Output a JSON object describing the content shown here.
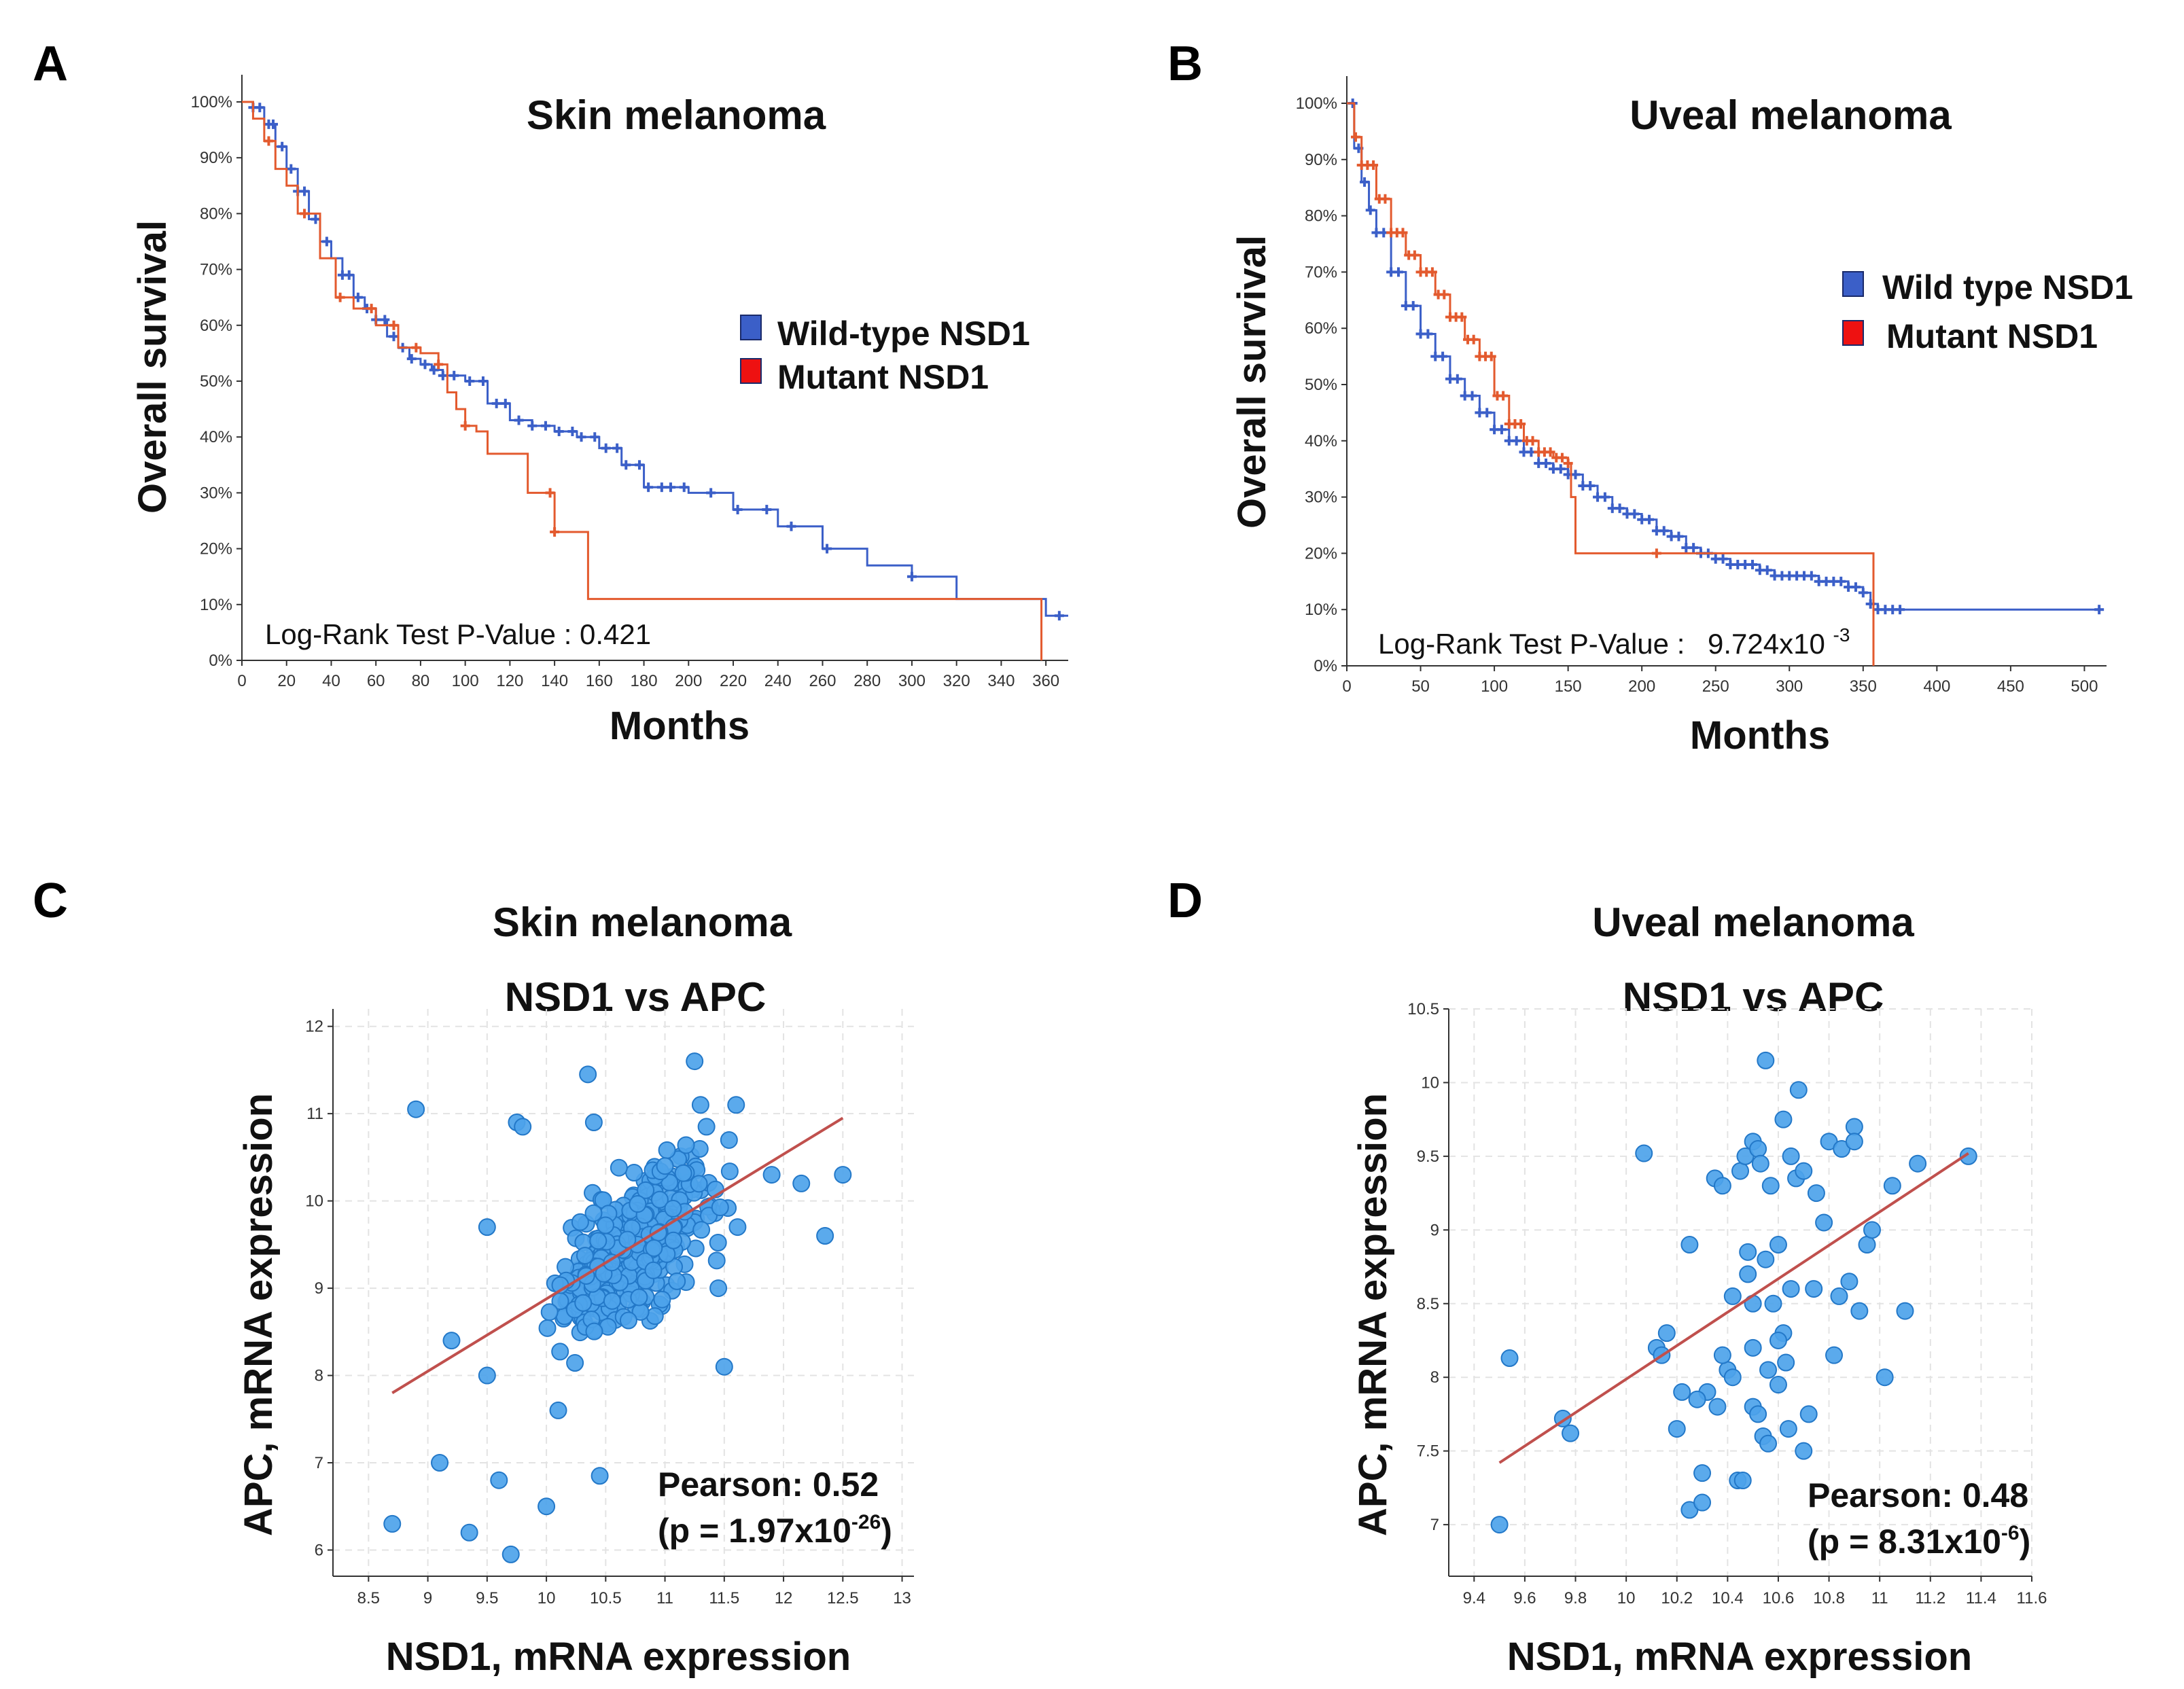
{
  "figure": {
    "panels": [
      {
        "letter": "A"
      },
      {
        "letter": "B"
      },
      {
        "letter": "C"
      },
      {
        "letter": "D"
      }
    ]
  },
  "colors": {
    "wildtype": "#3b5fc8",
    "mutant": "#e35a2e",
    "legend_mutant": "#ee1111",
    "scatter_fill": "#4da3ea",
    "scatter_stroke": "#2378c8",
    "regression": "#c0504d"
  },
  "chart_data": [
    {
      "id": "A",
      "type": "line",
      "title": "Skin melanoma",
      "xlabel": "Months",
      "ylabel": "Overall survival",
      "xlim": [
        0,
        370
      ],
      "ylim": [
        0,
        100
      ],
      "x_ticks": [
        "0",
        "20",
        "40",
        "60",
        "80",
        "100",
        "120",
        "140",
        "160",
        "180",
        "200",
        "220",
        "240",
        "260",
        "280",
        "300",
        "320",
        "340",
        "360"
      ],
      "y_ticks": [
        "0%",
        "10%",
        "20%",
        "30%",
        "40%",
        "50%",
        "60%",
        "70%",
        "80%",
        "90%",
        "100%"
      ],
      "legend": [
        "Wild-type NSD1",
        "Mutant NSD1"
      ],
      "annotation": "Log-Rank Test P-Value : 0.421",
      "series": [
        {
          "name": "Wild-type NSD1",
          "x": [
            0,
            5,
            10,
            15,
            20,
            25,
            30,
            35,
            40,
            45,
            50,
            55,
            60,
            65,
            70,
            75,
            80,
            85,
            90,
            100,
            110,
            120,
            130,
            140,
            150,
            160,
            170,
            180,
            200,
            220,
            240,
            260,
            280,
            300,
            320,
            340,
            360,
            370
          ],
          "y": [
            100,
            99,
            96,
            92,
            88,
            84,
            79,
            75,
            72,
            69,
            65,
            63,
            61,
            58,
            56,
            54,
            53,
            52,
            51,
            50,
            46,
            43,
            42,
            41,
            40,
            38,
            35,
            31,
            30,
            27,
            24,
            20,
            17,
            15,
            11,
            11,
            8,
            8
          ]
        },
        {
          "name": "Mutant NSD1",
          "x": [
            0,
            5,
            10,
            15,
            20,
            25,
            35,
            42,
            50,
            60,
            70,
            80,
            88,
            92,
            96,
            100,
            105,
            110,
            125,
            128,
            138,
            140,
            152,
            155,
            300,
            356,
            358
          ],
          "y": [
            100,
            97,
            93,
            88,
            85,
            80,
            72,
            65,
            63,
            60,
            56,
            55,
            53,
            48,
            45,
            42,
            41,
            37,
            37,
            30,
            30,
            23,
            23,
            11,
            11,
            11,
            0
          ]
        }
      ],
      "censor_x": {
        "Wild-type NSD1": [
          5,
          8,
          12,
          14,
          18,
          22,
          25,
          28,
          33,
          38,
          45,
          48,
          52,
          56,
          60,
          64,
          68,
          72,
          76,
          82,
          86,
          90,
          95,
          102,
          108,
          114,
          118,
          124,
          130,
          136,
          142,
          148,
          152,
          158,
          163,
          168,
          172,
          178,
          182,
          188,
          192,
          198,
          210,
          222,
          235,
          246,
          262,
          300,
          366
        ],
        "Mutant NSD1": [
          12,
          28,
          44,
          58,
          68,
          78,
          88,
          100,
          138,
          140
        ]
      }
    },
    {
      "id": "B",
      "type": "line",
      "title": "Uveal melanoma",
      "xlabel": "Months",
      "ylabel": "Overall survival",
      "xlim": [
        0,
        515
      ],
      "ylim": [
        0,
        100
      ],
      "x_ticks": [
        "0",
        "50",
        "100",
        "150",
        "200",
        "250",
        "300",
        "350",
        "400",
        "450",
        "500"
      ],
      "y_ticks": [
        "0%",
        "10%",
        "20%",
        "30%",
        "40%",
        "50%",
        "60%",
        "70%",
        "80%",
        "90%",
        "100%"
      ],
      "legend": [
        "Wild type NSD1",
        "Mutant NSD1"
      ],
      "annotation_prefix": "Log-Rank Test P-Value :",
      "annotation_value": "9.724x10",
      "annotation_exp": "-3",
      "series": [
        {
          "name": "Wild type NSD1",
          "x": [
            0,
            5,
            10,
            15,
            20,
            30,
            40,
            50,
            60,
            70,
            80,
            90,
            100,
            110,
            120,
            130,
            140,
            150,
            160,
            170,
            180,
            190,
            200,
            210,
            220,
            230,
            240,
            250,
            260,
            270,
            280,
            290,
            300,
            310,
            320,
            330,
            340,
            350,
            355,
            360,
            380,
            400,
            450,
            500,
            512
          ],
          "y": [
            100,
            92,
            86,
            81,
            77,
            70,
            64,
            59,
            55,
            51,
            48,
            45,
            42,
            40,
            38,
            36,
            35,
            34,
            32,
            30,
            28,
            27,
            26,
            24,
            23,
            21,
            20,
            19,
            18,
            18,
            17,
            16,
            16,
            16,
            15,
            15,
            14,
            13,
            11,
            10,
            10,
            10,
            10,
            10,
            10
          ]
        },
        {
          "name": "Mutant NSD1",
          "x": [
            0,
            5,
            10,
            20,
            30,
            40,
            50,
            60,
            70,
            80,
            90,
            100,
            110,
            120,
            130,
            140,
            150,
            152,
            155,
            160,
            180,
            200,
            250,
            300,
            356,
            357
          ],
          "y": [
            100,
            94,
            89,
            83,
            77,
            73,
            70,
            66,
            62,
            58,
            55,
            48,
            43,
            40,
            38,
            37,
            36,
            30,
            20,
            20,
            20,
            20,
            20,
            20,
            20,
            0
          ]
        }
      ],
      "censor_x": {
        "Wild type NSD1": [
          4,
          8,
          12,
          16,
          20,
          25,
          30,
          35,
          40,
          45,
          50,
          55,
          60,
          65,
          70,
          75,
          80,
          85,
          90,
          95,
          100,
          105,
          110,
          115,
          120,
          125,
          130,
          135,
          140,
          145,
          150,
          155,
          160,
          165,
          170,
          175,
          180,
          185,
          190,
          195,
          200,
          205,
          210,
          215,
          220,
          225,
          230,
          235,
          240,
          245,
          250,
          255,
          260,
          265,
          270,
          275,
          280,
          285,
          290,
          295,
          300,
          305,
          310,
          315,
          320,
          325,
          330,
          335,
          340,
          345,
          350,
          355,
          360,
          365,
          370,
          375,
          510
        ],
        "Mutant NSD1": [
          6,
          10,
          14,
          18,
          22,
          26,
          30,
          34,
          38,
          42,
          46,
          50,
          54,
          58,
          62,
          66,
          70,
          74,
          78,
          82,
          86,
          90,
          94,
          98,
          102,
          106,
          110,
          114,
          118,
          122,
          126,
          130,
          134,
          138,
          142,
          146,
          150,
          210
        ]
      }
    },
    {
      "id": "C",
      "type": "scatter",
      "title": "Skin melanoma",
      "subtitle": "NSD1 vs APC",
      "xlabel": "NSD1, mRNA expression",
      "ylabel": "APC, mRNA expression",
      "xlim": [
        8.2,
        13.1
      ],
      "ylim": [
        5.7,
        12.2
      ],
      "x_ticks": [
        "8.5",
        "9",
        "9.5",
        "10",
        "10.5",
        "11",
        "11.5",
        "12",
        "12.5",
        "13"
      ],
      "y_ticks": [
        "6",
        "7",
        "8",
        "9",
        "10",
        "11",
        "12"
      ],
      "pearson": "Pearson: 0.52",
      "p_prefix": "(p = 1.97x10",
      "p_exp": "-26",
      "p_suffix": ")",
      "regression": {
        "x": [
          8.7,
          12.5
        ],
        "y": [
          7.8,
          10.95
        ]
      },
      "n_points": 420,
      "fixed_points": {
        "x": [
          8.9,
          8.7,
          9.1,
          9.35,
          9.7,
          10.0,
          10.45,
          9.6,
          9.5,
          11.25,
          11.3,
          11.6,
          11.35,
          11.9,
          12.15,
          12.35,
          12.5,
          10.35,
          10.4,
          9.75,
          9.8,
          9.2,
          9.5,
          11.5,
          11.0,
          11.45,
          10.1
        ],
        "y": [
          11.05,
          6.3,
          7.0,
          6.2,
          5.95,
          6.5,
          6.85,
          6.8,
          8.0,
          11.6,
          11.1,
          11.1,
          10.85,
          10.3,
          10.2,
          9.6,
          10.3,
          11.45,
          10.9,
          10.9,
          10.85,
          8.4,
          9.7,
          8.1,
          10.4,
          9.0,
          7.6
        ]
      }
    },
    {
      "id": "D",
      "type": "scatter",
      "title": "Uveal melanoma",
      "subtitle": "NSD1 vs APC",
      "xlabel": "NSD1, mRNA expression",
      "ylabel": "APC, mRNA expression",
      "xlim": [
        9.3,
        11.6
      ],
      "ylim": [
        6.65,
        10.5
      ],
      "x_ticks": [
        "9.4",
        "9.6",
        "9.8",
        "10",
        "10.2",
        "10.4",
        "10.6",
        "10.8",
        "11",
        "11.2",
        "11.4",
        "11.6"
      ],
      "y_ticks": [
        "7",
        "7.5",
        "8",
        "8.5",
        "9",
        "9.5",
        "10",
        "10.5"
      ],
      "pearson": "Pearson: 0.48",
      "p_prefix": "(p = 8.31x10",
      "p_exp": "-6",
      "p_suffix": ")",
      "regression": {
        "x": [
          9.5,
          11.35
        ],
        "y": [
          7.42,
          9.52
        ]
      },
      "points": {
        "x": [
          9.5,
          9.54,
          9.75,
          9.78,
          10.07,
          10.12,
          10.14,
          10.16,
          10.2,
          10.22,
          10.25,
          10.3,
          10.32,
          10.35,
          10.38,
          10.4,
          10.42,
          10.45,
          10.47,
          10.48,
          10.5,
          10.5,
          10.52,
          10.53,
          10.55,
          10.55,
          10.57,
          10.58,
          10.6,
          10.62,
          10.63,
          10.65,
          10.65,
          10.67,
          10.68,
          10.7,
          10.72,
          10.75,
          10.78,
          10.8,
          10.82,
          10.85,
          10.88,
          10.9,
          10.92,
          10.95,
          10.97,
          11.02,
          11.05,
          11.1,
          11.15,
          11.35,
          10.25,
          10.28,
          10.3,
          10.36,
          10.38,
          10.44,
          10.46,
          10.5,
          10.52,
          10.54,
          10.56,
          10.6,
          10.62,
          10.64,
          10.7,
          10.74,
          10.84,
          10.9,
          10.42,
          10.48,
          10.5,
          10.56,
          10.6
        ],
        "y": [
          7.0,
          8.13,
          7.72,
          7.62,
          9.52,
          8.2,
          8.15,
          8.3,
          7.65,
          7.9,
          7.1,
          7.15,
          7.9,
          9.35,
          9.3,
          8.05,
          8.0,
          9.4,
          9.5,
          8.85,
          9.6,
          8.5,
          9.55,
          9.45,
          10.15,
          8.8,
          9.3,
          8.5,
          8.9,
          9.75,
          8.1,
          9.5,
          8.6,
          9.35,
          9.95,
          9.4,
          7.75,
          9.25,
          9.05,
          9.6,
          8.15,
          9.55,
          8.65,
          9.7,
          8.45,
          8.9,
          9.0,
          8.0,
          9.3,
          8.45,
          9.45,
          9.5,
          8.9,
          7.85,
          7.35,
          7.8,
          8.15,
          7.3,
          7.3,
          7.8,
          7.75,
          7.6,
          7.55,
          7.95,
          8.3,
          7.65,
          7.5,
          8.6,
          8.55,
          9.6,
          8.55,
          8.7,
          8.2,
          8.05,
          8.25
        ]
      }
    }
  ]
}
